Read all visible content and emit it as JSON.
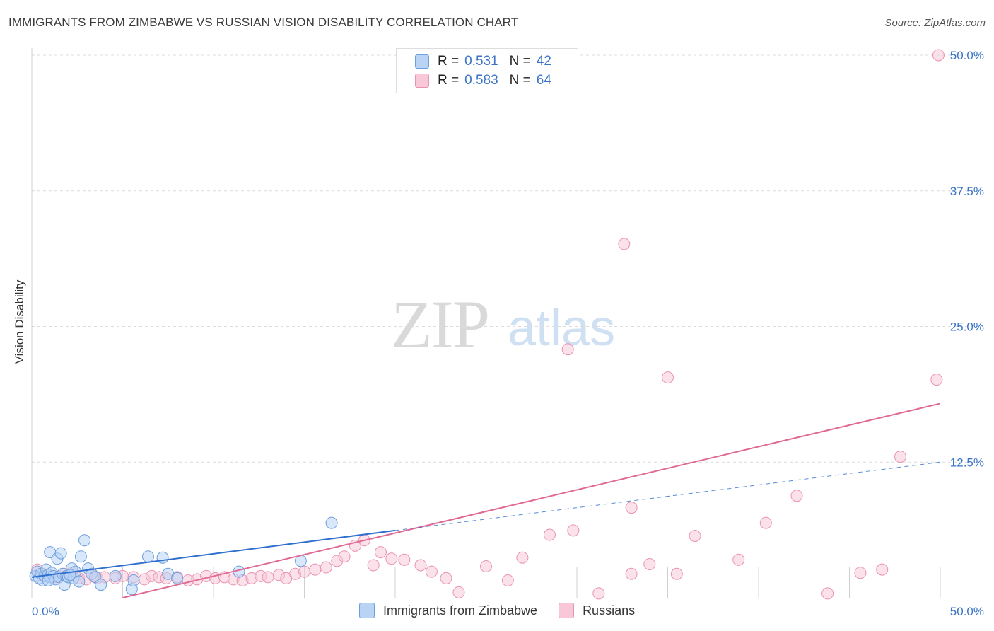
{
  "header": {
    "title": "IMMIGRANTS FROM ZIMBABWE VS RUSSIAN VISION DISABILITY CORRELATION CHART",
    "source": "Source: ZipAtlas.com"
  },
  "watermark": {
    "zip": "ZIP",
    "atlas": "atlas"
  },
  "legend": {
    "r_label": "R =",
    "n_label": "N =",
    "series": [
      {
        "r": "0.531",
        "n": "42"
      },
      {
        "r": "0.583",
        "n": "64"
      }
    ]
  },
  "bottom_legend": [
    "Immigrants from Zimbabwe",
    "Russians"
  ],
  "colors": {
    "blue_fill": "#b9d3f5",
    "blue_stroke": "#6c9fdb",
    "blue_line": "#2f6fce",
    "pink_fill": "#f8c8d8",
    "pink_stroke": "#ea93b0",
    "pink_line": "#e06a94",
    "tick_text": "#3b74c6",
    "grid": "#dcdcdc"
  },
  "chart_data": {
    "type": "scatter",
    "title": "IMMIGRANTS FROM ZIMBABWE VS RUSSIAN VISION DISABILITY CORRELATION CHART",
    "xlabel": "",
    "ylabel": "Vision Disability",
    "xlim": [
      0,
      50
    ],
    "ylim": [
      0,
      50
    ],
    "x_tick_labels": [
      "0.0%",
      "50.0%"
    ],
    "y_tick_labels": [
      "12.5%",
      "25.0%",
      "37.5%",
      "50.0%"
    ],
    "y_ticks": [
      12.5,
      25.0,
      37.5,
      50.0
    ],
    "grid": true,
    "legend_position": "top-center",
    "series": [
      {
        "name": "Immigrants from Zimbabwe",
        "r": 0.531,
        "n": 42,
        "trend": {
          "x0": 0.0,
          "y0": 1.9,
          "x1": 20.0,
          "y1": 6.2,
          "dashed_to": {
            "x": 50.0,
            "y": 12.5
          }
        },
        "points": [
          [
            0.2,
            2.0
          ],
          [
            0.3,
            2.4
          ],
          [
            0.4,
            1.8
          ],
          [
            0.5,
            2.2
          ],
          [
            0.6,
            1.6
          ],
          [
            0.7,
            2.0
          ],
          [
            0.8,
            2.6
          ],
          [
            0.9,
            2.1
          ],
          [
            1.0,
            4.2
          ],
          [
            1.0,
            1.9
          ],
          [
            1.1,
            2.3
          ],
          [
            1.2,
            2.0
          ],
          [
            1.3,
            1.7
          ],
          [
            1.4,
            3.6
          ],
          [
            1.5,
            1.9
          ],
          [
            1.6,
            4.1
          ],
          [
            1.7,
            2.2
          ],
          [
            1.8,
            1.2
          ],
          [
            1.9,
            2.0
          ],
          [
            2.0,
            1.9
          ],
          [
            2.2,
            2.7
          ],
          [
            2.3,
            1.8
          ],
          [
            2.4,
            2.4
          ],
          [
            2.6,
            1.5
          ],
          [
            2.7,
            3.8
          ],
          [
            2.9,
            5.3
          ],
          [
            3.1,
            2.7
          ],
          [
            3.3,
            2.2
          ],
          [
            3.5,
            1.9
          ],
          [
            3.8,
            1.2
          ],
          [
            4.6,
            2.0
          ],
          [
            5.5,
            0.8
          ],
          [
            5.6,
            1.6
          ],
          [
            6.4,
            3.8
          ],
          [
            7.2,
            3.7
          ],
          [
            7.5,
            2.2
          ],
          [
            8.0,
            1.8
          ],
          [
            11.4,
            2.4
          ],
          [
            14.8,
            3.4
          ],
          [
            16.5,
            6.9
          ],
          [
            0.9,
            1.6
          ],
          [
            2.1,
            2.1
          ]
        ]
      },
      {
        "name": "Russians",
        "r": 0.583,
        "n": 64,
        "trend": {
          "x0": 5.0,
          "y0": 0.0,
          "x1": 50.0,
          "y1": 17.9
        },
        "points": [
          [
            0.3,
            2.6
          ],
          [
            0.6,
            2.2
          ],
          [
            0.9,
            2.0
          ],
          [
            1.3,
            1.9
          ],
          [
            1.8,
            2.2
          ],
          [
            2.2,
            2.3
          ],
          [
            2.6,
            1.8
          ],
          [
            3.0,
            1.7
          ],
          [
            3.4,
            2.0
          ],
          [
            3.6,
            1.8
          ],
          [
            4.0,
            1.9
          ],
          [
            4.6,
            1.8
          ],
          [
            5.0,
            2.0
          ],
          [
            5.6,
            1.9
          ],
          [
            6.2,
            1.7
          ],
          [
            6.6,
            2.0
          ],
          [
            7.0,
            1.9
          ],
          [
            7.4,
            1.8
          ],
          [
            8.0,
            1.9
          ],
          [
            8.6,
            1.6
          ],
          [
            9.1,
            1.7
          ],
          [
            9.6,
            2.0
          ],
          [
            10.1,
            1.8
          ],
          [
            10.6,
            1.9
          ],
          [
            11.1,
            1.7
          ],
          [
            11.6,
            1.6
          ],
          [
            12.1,
            1.8
          ],
          [
            12.6,
            2.0
          ],
          [
            13.0,
            1.9
          ],
          [
            13.6,
            2.1
          ],
          [
            14.0,
            1.8
          ],
          [
            14.5,
            2.2
          ],
          [
            15.0,
            2.4
          ],
          [
            15.6,
            2.6
          ],
          [
            16.2,
            2.8
          ],
          [
            16.8,
            3.4
          ],
          [
            17.2,
            3.8
          ],
          [
            17.8,
            4.8
          ],
          [
            18.3,
            5.3
          ],
          [
            18.8,
            3.0
          ],
          [
            19.2,
            4.2
          ],
          [
            19.8,
            3.6
          ],
          [
            20.5,
            3.5
          ],
          [
            21.4,
            3.0
          ],
          [
            22.0,
            2.4
          ],
          [
            22.8,
            1.8
          ],
          [
            23.5,
            0.5
          ],
          [
            25.0,
            2.9
          ],
          [
            26.2,
            1.6
          ],
          [
            27.0,
            3.7
          ],
          [
            28.5,
            5.8
          ],
          [
            29.8,
            6.2
          ],
          [
            31.2,
            0.4
          ],
          [
            33.0,
            2.2
          ],
          [
            34.0,
            3.1
          ],
          [
            35.5,
            2.2
          ],
          [
            36.5,
            5.7
          ],
          [
            40.4,
            6.9
          ],
          [
            42.1,
            9.4
          ],
          [
            43.8,
            0.4
          ],
          [
            45.6,
            2.3
          ],
          [
            46.8,
            2.6
          ],
          [
            47.8,
            13.0
          ],
          [
            49.8,
            20.1
          ]
        ],
        "outliers": [
          [
            49.9,
            50.0
          ],
          [
            32.6,
            32.6
          ],
          [
            29.5,
            22.9
          ],
          [
            35.0,
            20.3
          ],
          [
            38.9,
            3.5
          ],
          [
            33.0,
            8.3
          ]
        ]
      }
    ]
  }
}
